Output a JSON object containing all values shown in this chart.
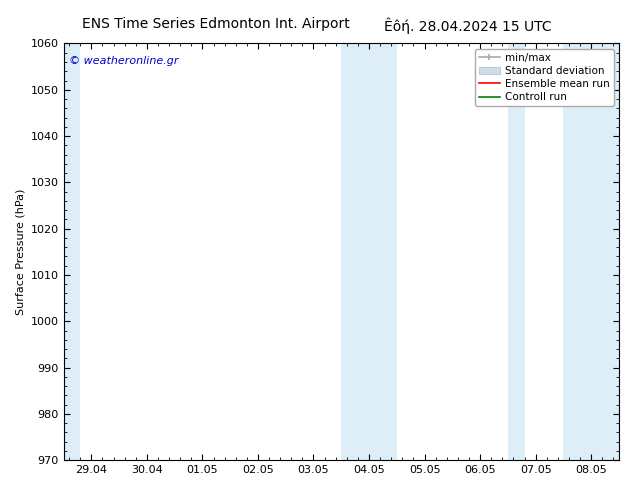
{
  "title_left": "ENS Time Series Edmonton Int. Airport",
  "title_right": "Êôή. 28.04.2024 15 UTC",
  "ylabel": "Surface Pressure (hPa)",
  "ylim": [
    970,
    1060
  ],
  "yticks": [
    970,
    980,
    990,
    1000,
    1010,
    1020,
    1030,
    1040,
    1050,
    1060
  ],
  "xlabels": [
    "29.04",
    "30.04",
    "01.05",
    "02.05",
    "03.05",
    "04.05",
    "05.05",
    "06.05",
    "07.05",
    "08.05"
  ],
  "x_values": [
    0,
    1,
    2,
    3,
    4,
    5,
    6,
    7,
    8,
    9
  ],
  "x_min": -0.5,
  "x_max": 9.5,
  "shaded_bands": [
    {
      "x_start": -0.5,
      "x_end": -0.2,
      "color": "#ddeef8"
    },
    {
      "x_start": 4.5,
      "x_end": 5.0,
      "color": "#ddeef8"
    },
    {
      "x_start": 5.0,
      "x_end": 5.5,
      "color": "#ddeef8"
    },
    {
      "x_start": 7.5,
      "x_end": 7.8,
      "color": "#ddeef8"
    },
    {
      "x_start": 8.5,
      "x_end": 8.8,
      "color": "#ddeef8"
    },
    {
      "x_start": 8.8,
      "x_end": 9.5,
      "color": "#ddeef8"
    }
  ],
  "watermark_text": "© weatheronline.gr",
  "watermark_color": "#0000cc",
  "legend_labels": [
    "min/max",
    "Standard deviation",
    "Ensemble mean run",
    "Controll run"
  ],
  "legend_colors": [
    "#aaaaaa",
    "#ccdde8",
    "#ff0000",
    "#008000"
  ],
  "bg_color": "#ffffff",
  "axes_color": "#000000",
  "tick_label_fontsize": 8,
  "title_fontsize": 10,
  "ylabel_fontsize": 8,
  "legend_fontsize": 7.5,
  "figsize": [
    6.34,
    4.9
  ],
  "dpi": 100
}
